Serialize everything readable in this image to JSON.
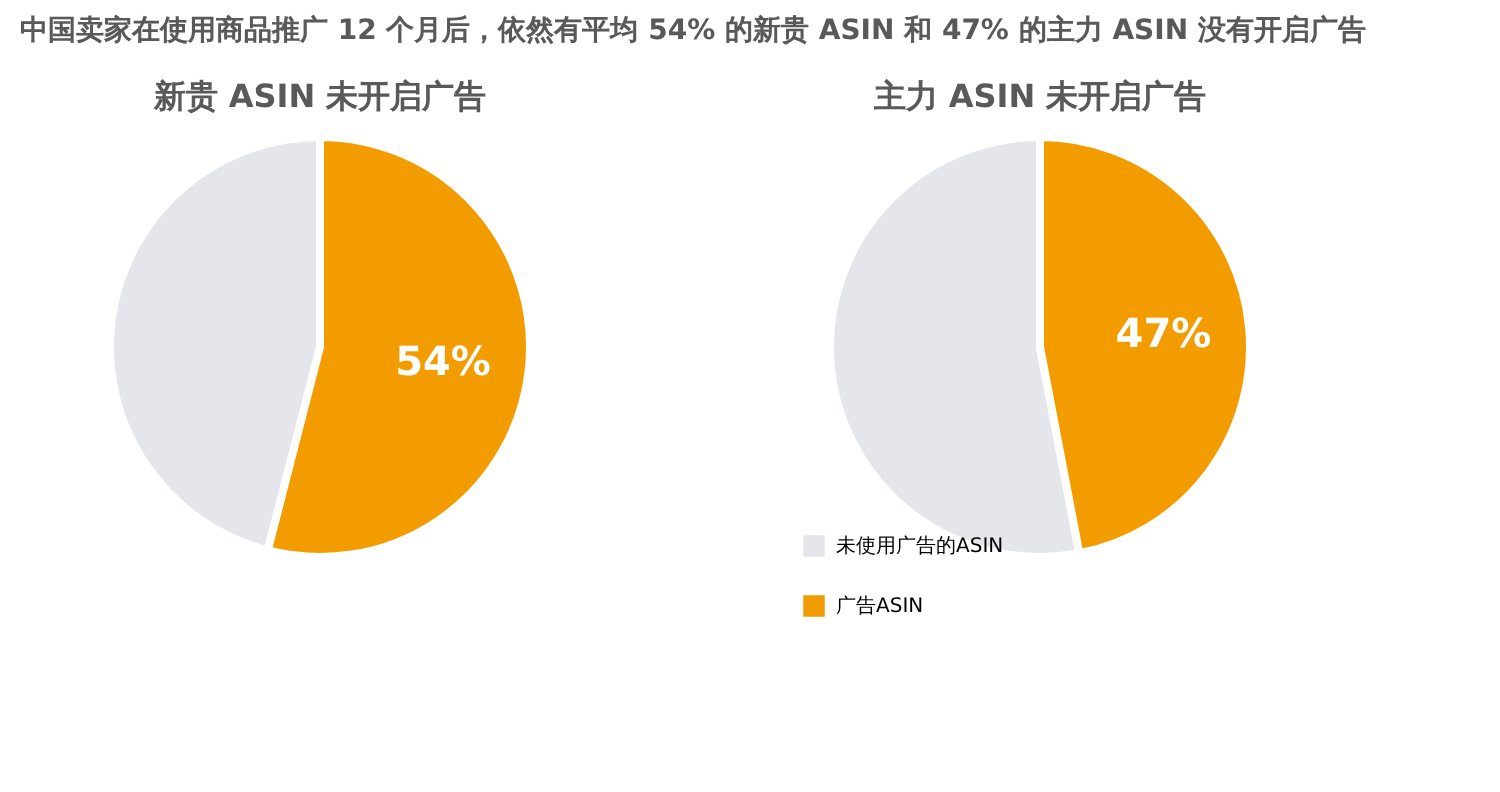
{
  "chart_data": [
    {
      "type": "pie",
      "title": "中国卖家在使用商品推广 12 个月后，依然有平均 54% 的新贵 ASIN 和 47% 的主力 ASIN 没有开启广告",
      "subtitle": "新贵 ASIN 未开启广告",
      "categories": [
        null,
        null
      ],
      "values": [
        46,
        54
      ],
      "colors": [
        "#e4e6ec",
        "#f39c00"
      ],
      "value_labels": [
        null,
        "54%"
      ],
      "legend": false
    },
    {
      "type": "pie",
      "subtitle": "主力 ASIN 未开启广告",
      "categories": [
        "未使用广告的ASIN",
        "广告ASIN"
      ],
      "values": [
        53,
        47
      ],
      "colors": [
        "#e4e6ec",
        "#f39c00"
      ],
      "value_labels": [
        null,
        "47%"
      ],
      "legend": "bottom left"
    }
  ]
}
